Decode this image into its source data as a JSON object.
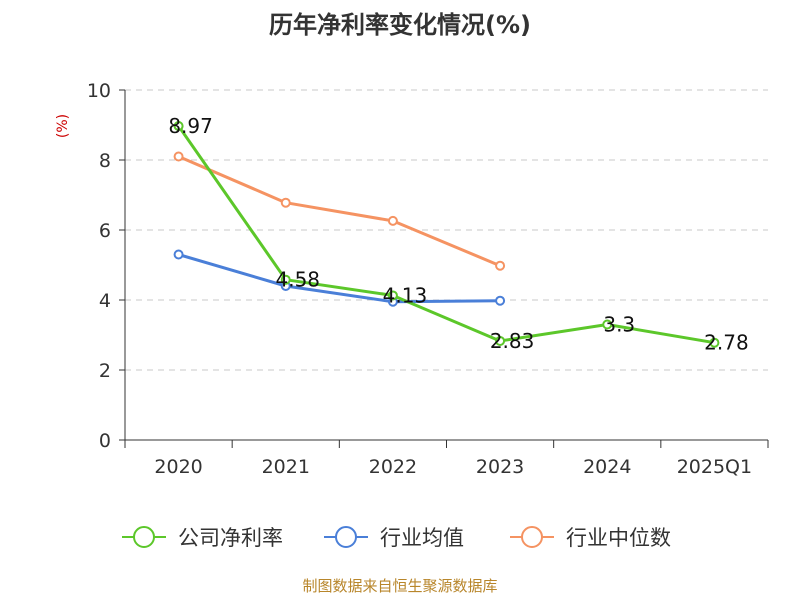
{
  "chart_data": {
    "type": "line",
    "title": "历年净利率变化情况(%)",
    "ylabel": "(%)",
    "xlabel": "",
    "categories": [
      "2020",
      "2021",
      "2022",
      "2023",
      "2024",
      "2025Q1"
    ],
    "ylim": [
      0,
      10
    ],
    "yticks": [
      "0",
      "2",
      "4",
      "6",
      "8",
      "10"
    ],
    "grid": true,
    "legend_position": "bottom",
    "series": [
      {
        "name": "公司净利率",
        "color": "#5cc72a",
        "values": [
          8.97,
          4.58,
          4.13,
          2.83,
          3.3,
          2.78
        ],
        "labels": [
          "8.97",
          "4.58",
          "4.13",
          "2.83",
          "3.3",
          "2.78"
        ]
      },
      {
        "name": "行业均值",
        "color": "#4a7fd8",
        "values": [
          5.3,
          4.4,
          3.95,
          3.98,
          null,
          null
        ]
      },
      {
        "name": "行业中位数",
        "color": "#f59362",
        "values": [
          8.1,
          6.78,
          6.26,
          4.98,
          null,
          null
        ]
      }
    ]
  },
  "source": "制图数据来自恒生聚源数据库"
}
